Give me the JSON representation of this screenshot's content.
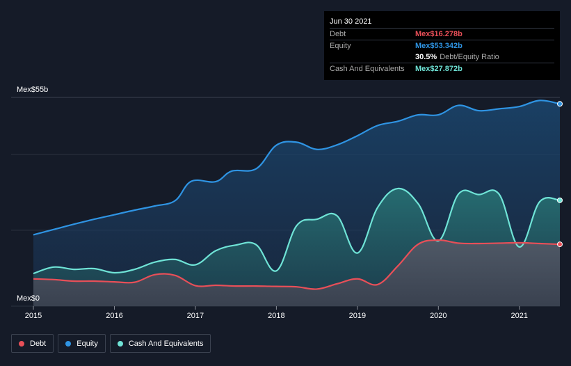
{
  "colors": {
    "debt": "#e84f58",
    "equity": "#2f94e3",
    "cash": "#6fe3d6",
    "grid": "#2c3340",
    "background": "#151b28"
  },
  "tooltip": {
    "date": "Jun 30 2021",
    "debt_label": "Debt",
    "debt_value": "Mex$16.278b",
    "equity_label": "Equity",
    "equity_value": "Mex$53.342b",
    "ratio_value": "30.5%",
    "ratio_label": "Debt/Equity Ratio",
    "cash_label": "Cash And Equivalents",
    "cash_value": "Mex$27.872b"
  },
  "legend": {
    "debt": "Debt",
    "equity": "Equity",
    "cash": "Cash And Equivalents"
  },
  "chart_data": {
    "type": "area",
    "y_top_label": "Mex$55b",
    "y_bottom_label": "Mex$0",
    "ylim": [
      0,
      55
    ],
    "xlim": [
      2015.0,
      2021.5
    ],
    "x_ticks": [
      "2015",
      "2016",
      "2017",
      "2018",
      "2019",
      "2020",
      "2021"
    ],
    "grid": true,
    "series": [
      {
        "name": "Equity",
        "x": [
          2015.0,
          2015.25,
          2015.5,
          2015.75,
          2016.0,
          2016.25,
          2016.5,
          2016.75,
          2016.95,
          2017.25,
          2017.45,
          2017.75,
          2018.0,
          2018.25,
          2018.5,
          2018.75,
          2019.0,
          2019.25,
          2019.5,
          2019.75,
          2020.0,
          2020.25,
          2020.5,
          2020.75,
          2021.0,
          2021.25,
          2021.5
        ],
        "values": [
          18.8,
          20.2,
          21.6,
          22.9,
          24.1,
          25.3,
          26.4,
          27.8,
          32.9,
          32.8,
          35.6,
          36.2,
          42.4,
          43.2,
          41.3,
          42.5,
          44.9,
          47.6,
          48.7,
          50.4,
          50.4,
          52.9,
          51.5,
          52.0,
          52.6,
          54.2,
          53.3
        ]
      },
      {
        "name": "Cash And Equivalents",
        "x": [
          2015.0,
          2015.25,
          2015.5,
          2015.75,
          2016.0,
          2016.25,
          2016.5,
          2016.75,
          2017.0,
          2017.25,
          2017.5,
          2017.75,
          2018.0,
          2018.25,
          2018.5,
          2018.75,
          2019.0,
          2019.25,
          2019.5,
          2019.75,
          2020.0,
          2020.25,
          2020.5,
          2020.75,
          2021.0,
          2021.25,
          2021.5
        ],
        "values": [
          8.6,
          10.3,
          9.7,
          9.9,
          8.8,
          9.7,
          11.6,
          12.3,
          10.9,
          14.6,
          16.1,
          16.2,
          9.3,
          21.2,
          22.9,
          23.8,
          14.0,
          26.0,
          31.0,
          27.0,
          17.2,
          29.6,
          29.4,
          29.5,
          15.6,
          27.5,
          27.9
        ]
      },
      {
        "name": "Debt",
        "x": [
          2015.0,
          2015.25,
          2015.5,
          2015.75,
          2016.0,
          2016.25,
          2016.5,
          2016.75,
          2017.0,
          2017.25,
          2017.5,
          2017.75,
          2018.0,
          2018.25,
          2018.5,
          2018.75,
          2019.0,
          2019.25,
          2019.5,
          2019.75,
          2020.0,
          2020.25,
          2020.5,
          2020.75,
          2021.0,
          2021.25,
          2021.5
        ],
        "values": [
          7.2,
          7.0,
          6.6,
          6.6,
          6.4,
          6.3,
          8.3,
          8.1,
          5.4,
          5.5,
          5.3,
          5.3,
          5.2,
          5.1,
          4.5,
          5.9,
          7.2,
          5.7,
          10.6,
          16.3,
          17.4,
          16.6,
          16.5,
          16.6,
          16.7,
          16.5,
          16.3
        ]
      }
    ]
  }
}
